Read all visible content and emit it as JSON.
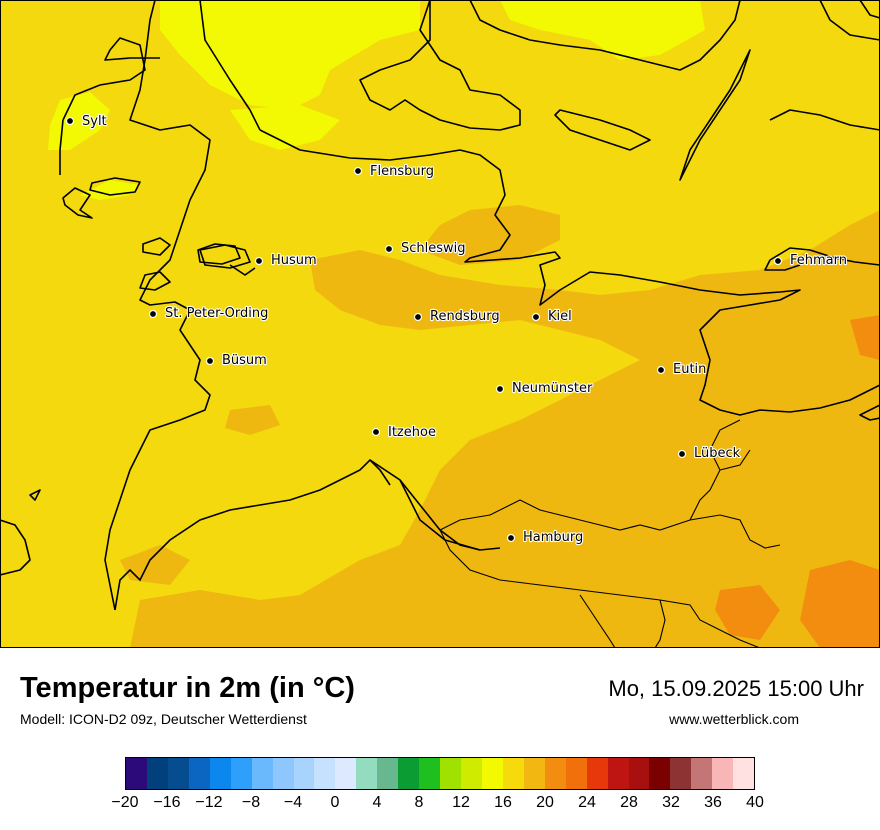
{
  "title": "Temperatur in 2m (in °C)",
  "subtitle": "Modell: ICON-D2 09z, Deutscher Wetterdienst",
  "datetime": "Mo, 15.09.2025 15:00 Uhr",
  "website": "www.wetterblick.com",
  "cities": [
    {
      "name": "Sylt"
    },
    {
      "name": "Flensburg"
    },
    {
      "name": "Schleswig"
    },
    {
      "name": "Husum"
    },
    {
      "name": "Fehmarn"
    },
    {
      "name": "St. Peter-Ording"
    },
    {
      "name": "Rendsburg"
    },
    {
      "name": "Kiel"
    },
    {
      "name": "Büsum"
    },
    {
      "name": "Eutin"
    },
    {
      "name": "Neumünster"
    },
    {
      "name": "Itzehoe"
    },
    {
      "name": "Lübeck"
    },
    {
      "name": "Hamburg"
    }
  ],
  "colorbar": {
    "colors": [
      "#2c0a7a",
      "#023f7d",
      "#064d8f",
      "#0a66c1",
      "#0b87ed",
      "#2ea0fb",
      "#6bb9fd",
      "#8ec7fd",
      "#a7d3fd",
      "#c6e1fe",
      "#dce9fe",
      "#94dcbf",
      "#67b88f",
      "#0c9c34",
      "#1ebf1e",
      "#9fe200",
      "#cfec00",
      "#f2f900",
      "#f7da0c",
      "#f3b711",
      "#f38d0f",
      "#f1700b",
      "#e7380b",
      "#be1412",
      "#a80f0f",
      "#7b0000",
      "#8d3333",
      "#c47676",
      "#f9b6b6",
      "#ffe1e1"
    ],
    "ticks": [
      "−20",
      "−16",
      "−12",
      "−8",
      "−4",
      "0",
      "4",
      "8",
      "12",
      "16",
      "20",
      "24",
      "28",
      "32",
      "36",
      "40"
    ],
    "range": [
      -20,
      40
    ]
  }
}
